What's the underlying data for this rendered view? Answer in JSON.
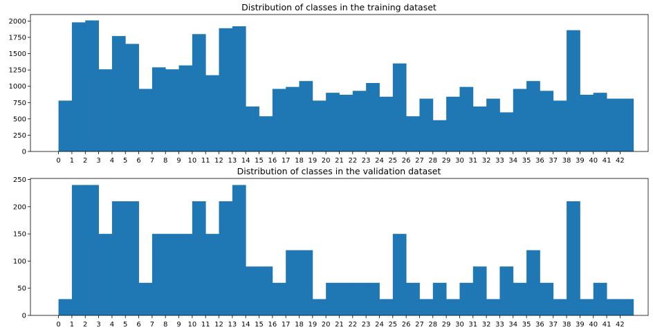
{
  "chart_data": [
    {
      "type": "bar",
      "title": "Distribution of classes in the training dataset",
      "xlabel": "",
      "ylabel": "",
      "bin_edges": [
        0,
        1,
        2,
        3,
        4,
        5,
        6,
        7,
        8,
        9,
        10,
        11,
        12,
        13,
        14,
        15,
        16,
        17,
        18,
        19,
        20,
        21,
        22,
        23,
        24,
        25,
        26,
        27,
        28,
        29,
        30,
        31,
        32,
        33,
        34,
        35,
        36,
        37,
        38,
        39,
        40,
        41,
        42
      ],
      "values": [
        780,
        1980,
        2010,
        1260,
        1770,
        1650,
        960,
        1290,
        1260,
        1320,
        1800,
        1170,
        1890,
        1920,
        690,
        540,
        960,
        990,
        1080,
        780,
        900,
        870,
        930,
        1050,
        840,
        1350,
        540,
        810,
        480,
        840,
        990,
        690,
        810,
        600,
        960,
        1080,
        930,
        780,
        1860,
        870,
        900,
        810,
        810
      ],
      "xticks": [
        "0",
        "1",
        "2",
        "3",
        "4",
        "5",
        "6",
        "7",
        "8",
        "9",
        "10",
        "11",
        "12",
        "13",
        "14",
        "15",
        "16",
        "17",
        "18",
        "19",
        "20",
        "21",
        "22",
        "23",
        "24",
        "25",
        "26",
        "27",
        "28",
        "29",
        "30",
        "31",
        "32",
        "33",
        "34",
        "35",
        "36",
        "37",
        "38",
        "39",
        "40",
        "41",
        "42"
      ],
      "yticks": [
        "0",
        "250",
        "500",
        "750",
        "1000",
        "1250",
        "1500",
        "1750",
        "2000"
      ],
      "ylim": [
        0,
        2100
      ],
      "xlim": [
        -2.1,
        44.1
      ],
      "color": "#1f77b4",
      "grid": false
    },
    {
      "type": "bar",
      "title": "Distribution of classes in the validation dataset",
      "xlabel": "",
      "ylabel": "",
      "bin_edges": [
        0,
        1,
        2,
        3,
        4,
        5,
        6,
        7,
        8,
        9,
        10,
        11,
        12,
        13,
        14,
        15,
        16,
        17,
        18,
        19,
        20,
        21,
        22,
        23,
        24,
        25,
        26,
        27,
        28,
        29,
        30,
        31,
        32,
        33,
        34,
        35,
        36,
        37,
        38,
        39,
        40,
        41,
        42
      ],
      "values": [
        30,
        240,
        240,
        150,
        210,
        210,
        60,
        150,
        150,
        150,
        210,
        150,
        210,
        240,
        90,
        90,
        60,
        120,
        120,
        30,
        60,
        60,
        60,
        60,
        30,
        150,
        60,
        30,
        60,
        30,
        60,
        90,
        30,
        90,
        60,
        120,
        60,
        30,
        210,
        30,
        60,
        30,
        30
      ],
      "xticks": [
        "0",
        "1",
        "2",
        "3",
        "4",
        "5",
        "6",
        "7",
        "8",
        "9",
        "10",
        "11",
        "12",
        "13",
        "14",
        "15",
        "16",
        "17",
        "18",
        "19",
        "20",
        "21",
        "22",
        "23",
        "24",
        "25",
        "26",
        "27",
        "28",
        "29",
        "30",
        "31",
        "32",
        "33",
        "34",
        "35",
        "36",
        "37",
        "38",
        "39",
        "40",
        "41",
        "42"
      ],
      "yticks": [
        "0",
        "50",
        "100",
        "150",
        "200",
        "250"
      ],
      "ylim": [
        0,
        252
      ],
      "xlim": [
        -2.1,
        44.1
      ],
      "color": "#1f77b4",
      "grid": false
    }
  ]
}
